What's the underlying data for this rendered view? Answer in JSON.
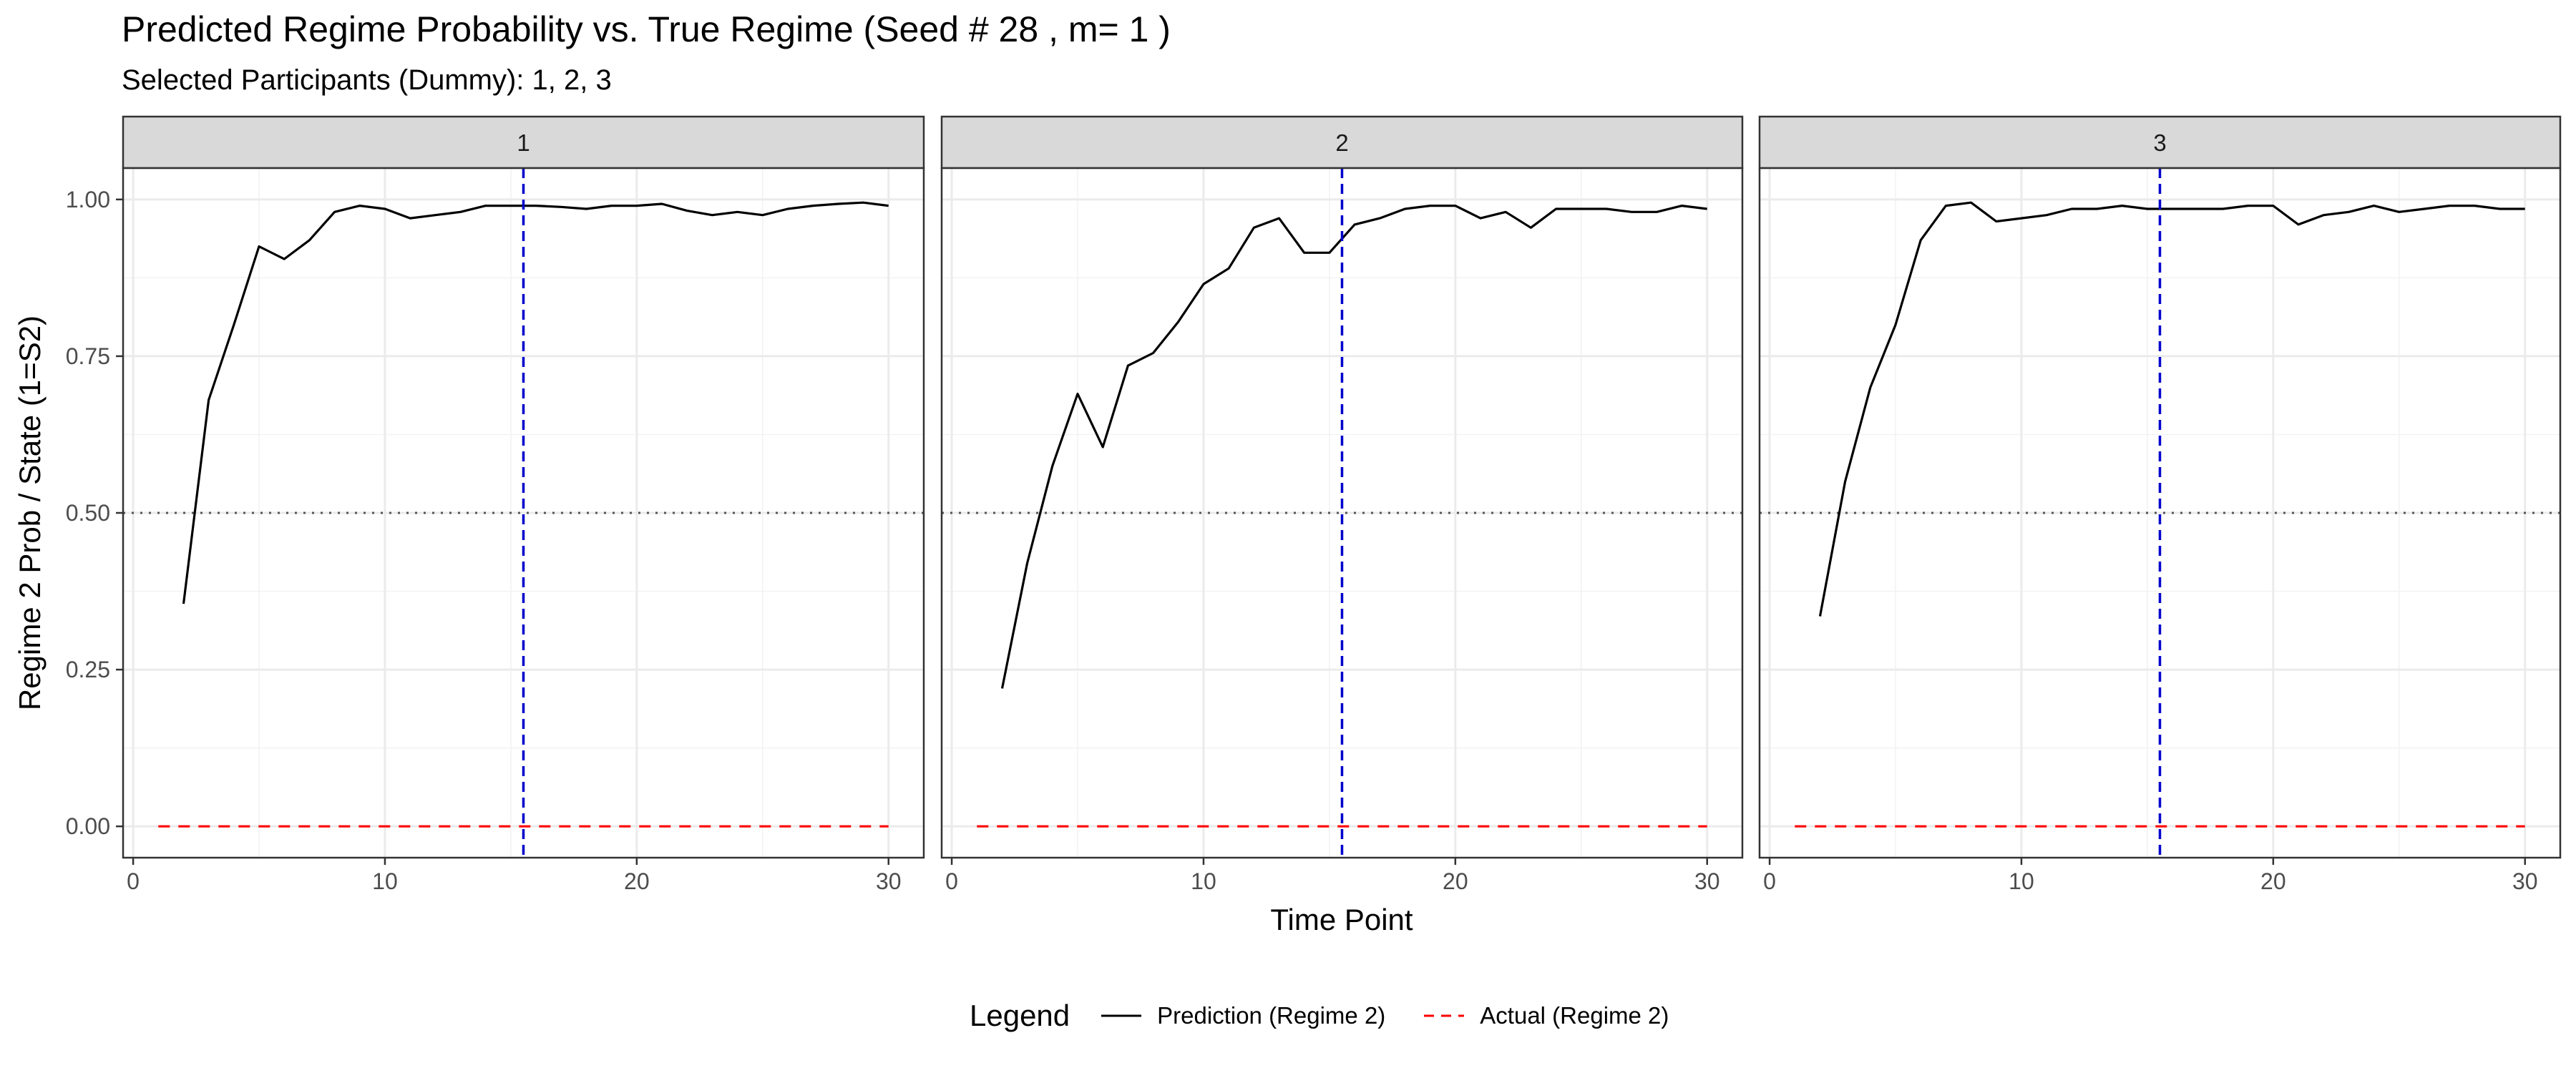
{
  "title": "Predicted Regime Probability vs. True Regime (Seed # 28 , m= 1 )",
  "subtitle": "Selected Participants (Dummy): 1, 2, 3",
  "legend": {
    "title": "Legend",
    "items": [
      {
        "label": "Prediction (Regime 2)",
        "color": "#000000",
        "linetype": "solid"
      },
      {
        "label": "Actual (Regime 2)",
        "color": "#ff0000",
        "linetype": "dashed"
      }
    ]
  },
  "chart_data": {
    "type": "line",
    "facet_by": "participant",
    "xlabel": "Time Point",
    "ylabel": "Regime 2 Prob / State (1=S2)",
    "xlim": [
      -0.4,
      31.4
    ],
    "ylim": [
      -0.05,
      1.05
    ],
    "x_ticks": [
      0,
      10,
      20,
      30
    ],
    "y_ticks": [
      0.0,
      0.25,
      0.5,
      0.75,
      1.0
    ],
    "y_tick_labels": [
      "0.00",
      "0.25",
      "0.50",
      "0.75",
      "1.00"
    ],
    "grid": true,
    "reference_lines": [
      {
        "axis": "x",
        "value": 15.5,
        "color": "#0000cc",
        "linetype": "dashed"
      },
      {
        "axis": "y",
        "value": 0.5,
        "color": "#555555",
        "linetype": "dotted"
      }
    ],
    "panels": [
      {
        "facet_label": "1",
        "series": [
          {
            "name": "Prediction (Regime 2)",
            "color": "#000000",
            "x": [
              2,
              3,
              4,
              5,
              6,
              7,
              8,
              9,
              10,
              11,
              12,
              13,
              14,
              15,
              16,
              17,
              18,
              19,
              20,
              21,
              22,
              23,
              24,
              25,
              26,
              27,
              28,
              29,
              30
            ],
            "y": [
              0.355,
              0.68,
              0.8,
              0.925,
              0.905,
              0.935,
              0.98,
              0.99,
              0.985,
              0.97,
              0.975,
              0.98,
              0.99,
              0.99,
              0.99,
              0.988,
              0.985,
              0.99,
              0.99,
              0.993,
              0.982,
              0.975,
              0.98,
              0.975,
              0.985,
              0.99,
              0.993,
              0.995,
              0.99
            ]
          },
          {
            "name": "Actual (Regime 2)",
            "color": "#ff0000",
            "x": [
              1,
              30
            ],
            "y": [
              0,
              0
            ]
          }
        ]
      },
      {
        "facet_label": "2",
        "series": [
          {
            "name": "Prediction (Regime 2)",
            "color": "#000000",
            "x": [
              2,
              3,
              4,
              5,
              6,
              7,
              8,
              9,
              10,
              11,
              12,
              13,
              14,
              15,
              16,
              17,
              18,
              19,
              20,
              21,
              22,
              23,
              24,
              25,
              26,
              27,
              28,
              29,
              30
            ],
            "y": [
              0.22,
              0.42,
              0.575,
              0.69,
              0.605,
              0.735,
              0.755,
              0.805,
              0.865,
              0.89,
              0.955,
              0.97,
              0.915,
              0.915,
              0.96,
              0.97,
              0.985,
              0.99,
              0.99,
              0.97,
              0.98,
              0.955,
              0.985,
              0.985,
              0.985,
              0.98,
              0.98,
              0.99,
              0.985
            ]
          },
          {
            "name": "Actual (Regime 2)",
            "color": "#ff0000",
            "x": [
              1,
              30
            ],
            "y": [
              0,
              0
            ]
          }
        ]
      },
      {
        "facet_label": "3",
        "series": [
          {
            "name": "Prediction (Regime 2)",
            "color": "#000000",
            "x": [
              2,
              3,
              4,
              5,
              6,
              7,
              8,
              9,
              10,
              11,
              12,
              13,
              14,
              15,
              16,
              17,
              18,
              19,
              20,
              21,
              22,
              23,
              24,
              25,
              26,
              27,
              28,
              29,
              30
            ],
            "y": [
              0.335,
              0.55,
              0.7,
              0.8,
              0.935,
              0.99,
              0.995,
              0.965,
              0.97,
              0.975,
              0.985,
              0.985,
              0.99,
              0.985,
              0.985,
              0.985,
              0.985,
              0.99,
              0.99,
              0.96,
              0.975,
              0.98,
              0.99,
              0.98,
              0.985,
              0.99,
              0.99,
              0.985,
              0.985
            ]
          },
          {
            "name": "Actual (Regime 2)",
            "color": "#ff0000",
            "x": [
              1,
              30
            ],
            "y": [
              0,
              0
            ]
          }
        ]
      }
    ]
  }
}
